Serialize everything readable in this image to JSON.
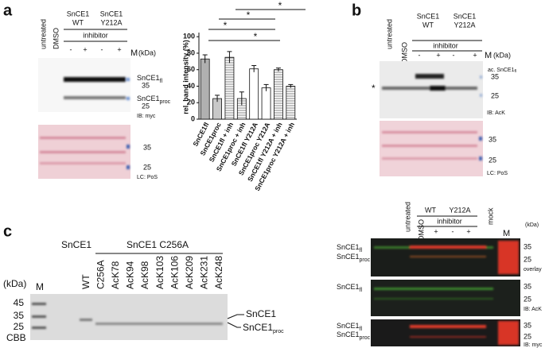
{
  "panel_a": {
    "letter": "a",
    "lanes": [
      "untreated",
      "DMSO"
    ],
    "groups": [
      {
        "name": "SnCE1",
        "variant": "WT"
      },
      {
        "name": "SnCE1",
        "variant": "Y212A"
      }
    ],
    "treatment": "inhibitor",
    "signs": [
      "-",
      "+",
      "-",
      "+"
    ],
    "marker": "M",
    "unit": "(kDa)",
    "blot1": {
      "bands": [
        {
          "text": "SnCE1",
          "sub": "fl"
        },
        {
          "text": "SnCE1",
          "sub": "proc"
        }
      ],
      "markers": [
        "35",
        "25"
      ],
      "label": "IB: myc"
    },
    "blot2": {
      "markers": [
        "35",
        "25"
      ],
      "label": "LC: PoS"
    },
    "significance": [
      "*",
      "*",
      "*",
      "*"
    ]
  },
  "chart_data": {
    "type": "bar",
    "ylabel": "rel. band intensity (%)",
    "categories": [
      "SnCE1fl",
      "SnCE1proc",
      "SnCE1fl + inh",
      "SnCE1proc + inh",
      "SnCE1fl Y212A",
      "SnCE1proc Y212A",
      "SnCE1fl Y212A + inh",
      "SnCE1proc Y212A + inh"
    ],
    "values": [
      73,
      25,
      75,
      25,
      61,
      38,
      60,
      40
    ],
    "errors": [
      5,
      4,
      7,
      8,
      4,
      4,
      2,
      2
    ],
    "colors": [
      "#b0b0b0",
      "#c8c8c8",
      "#ffffff",
      "#d4d4d4",
      "#ffffff",
      "#ffffff",
      "#ffffff",
      "#ffffff"
    ],
    "patterns": [
      "solid",
      "solid",
      "hatch",
      "hatch",
      "solid",
      "solid",
      "hatch",
      "hatch"
    ],
    "ylim": [
      0,
      105
    ],
    "yticks": [
      0,
      20,
      40,
      60,
      80,
      100
    ]
  },
  "panel_b": {
    "letter": "b",
    "lanes": [
      "untreated",
      "DMSO"
    ],
    "groups": [
      {
        "name": "SnCE1",
        "variant": "WT"
      },
      {
        "name": "SnCE1",
        "variant": "Y212A"
      }
    ],
    "treatment": "inhibitor",
    "signs": [
      "-",
      "+",
      "-",
      "+"
    ],
    "marker": "M",
    "unit": "(kDa)",
    "blot1": {
      "band": {
        "text": "ac. SnCE1",
        "sub": "fl"
      },
      "markers": [
        "35",
        "25"
      ],
      "asterisk": "*",
      "label": "IB: AcK"
    },
    "blot2": {
      "markers": [
        "35",
        "25"
      ],
      "label": "LC: PoS"
    }
  },
  "panel_fluo": {
    "lanes": [
      "untreated",
      "DMSO"
    ],
    "groups": [
      "WT",
      "Y212A"
    ],
    "treatment": "inhibitor",
    "mock": "mock",
    "signs": [
      "-",
      "+",
      "-",
      "+"
    ],
    "marker": "M",
    "unit": "(kDa)",
    "blots": [
      {
        "bands": [
          {
            "text": "SnCE1",
            "sub": "fl"
          },
          {
            "text": "SnCE1",
            "sub": "proc"
          }
        ],
        "markers": [
          "35",
          "25"
        ],
        "label": "overlay"
      },
      {
        "bands": [
          {
            "text": "SnCE1",
            "sub": "fl"
          }
        ],
        "markers": [
          "35",
          "25"
        ],
        "label": "IB: AcK"
      },
      {
        "bands": [
          {
            "text": "SnCE1",
            "sub": "fl"
          },
          {
            "text": "SnCE1",
            "sub": "proc"
          }
        ],
        "markers": [
          "35",
          "25"
        ],
        "label": "IB: myc"
      }
    ]
  },
  "panel_c": {
    "letter": "c",
    "groups": [
      "SnCE1",
      "SnCE1 C256A"
    ],
    "unit": "(kDa)",
    "lanes": [
      "M",
      "WT",
      "C256A",
      "AcK78",
      "AcK94",
      "AcK98",
      "AcK103",
      "AcK106",
      "AcK209",
      "AcK231",
      "AcK248"
    ],
    "markers": [
      "45",
      "35",
      "25"
    ],
    "stain": "CBB",
    "bands": [
      {
        "text": "SnCE1",
        "sub": ""
      },
      {
        "text": "SnCE1",
        "sub": "proc"
      }
    ]
  }
}
